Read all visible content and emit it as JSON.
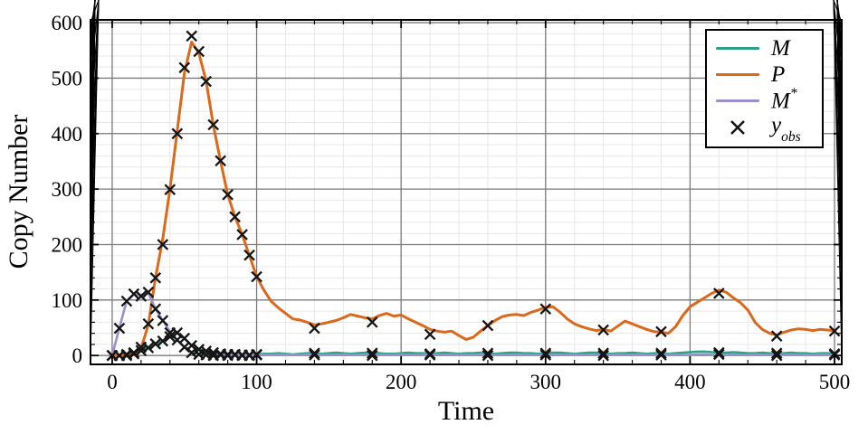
{
  "chart_data": {
    "type": "line",
    "title": "",
    "xlabel": "Time",
    "ylabel": "Copy Number",
    "xlim": [
      -15,
      505
    ],
    "ylim": [
      -16,
      605
    ],
    "xticks": [
      0,
      100,
      200,
      300,
      400,
      500
    ],
    "yticks": [
      0,
      100,
      200,
      300,
      400,
      500,
      600
    ],
    "minor_tick_step": 20,
    "grid": {
      "major_color": "#7a7a7a",
      "minor_color": "#e8e8e8",
      "background": "#ffffff"
    },
    "legend_position": "top-right",
    "series": [
      {
        "name": "M",
        "color": "#2da087",
        "t_start": 0,
        "t_step": 5,
        "values": [
          0,
          0,
          2,
          5,
          9,
          14,
          20,
          26,
          34,
          41,
          31,
          18,
          11,
          8,
          5,
          3,
          2,
          2,
          1,
          1,
          2,
          3,
          3,
          4,
          3,
          2,
          3,
          4,
          4,
          3,
          4,
          5,
          4,
          3,
          4,
          5,
          5,
          4,
          3,
          3,
          4,
          5,
          4,
          4,
          3,
          4,
          5,
          4,
          3,
          4,
          4,
          5,
          4,
          3,
          4,
          5,
          5,
          4,
          4,
          3,
          4,
          5,
          5,
          4,
          3,
          4,
          5,
          5,
          4,
          3,
          4,
          4,
          5,
          4,
          3,
          4,
          4,
          3,
          4,
          5,
          6,
          7,
          7,
          6,
          5,
          5,
          6,
          5,
          4,
          4,
          5,
          4,
          3,
          4,
          5,
          4,
          4,
          3,
          4,
          4,
          3
        ]
      },
      {
        "name": "P",
        "color": "#dc691a",
        "t_start": 0,
        "t_step": 5,
        "values": [
          0,
          0,
          1,
          3,
          13,
          55,
          140,
          210,
          300,
          405,
          510,
          565,
          545,
          495,
          415,
          350,
          290,
          250,
          218,
          180,
          142,
          118,
          98,
          86,
          76,
          66,
          64,
          60,
          55,
          57,
          60,
          63,
          68,
          74,
          71,
          68,
          66,
          72,
          76,
          71,
          73,
          66,
          60,
          54,
          47,
          44,
          42,
          44,
          36,
          29,
          33,
          44,
          54,
          63,
          70,
          73,
          74,
          72,
          78,
          82,
          87,
          88,
          78,
          66,
          57,
          52,
          48,
          45,
          47,
          44,
          53,
          62,
          57,
          52,
          47,
          43,
          42,
          40,
          52,
          72,
          88,
          96,
          104,
          112,
          118,
          114,
          104,
          95,
          82,
          60,
          47,
          40,
          37,
          42,
          46,
          48,
          47,
          45,
          47,
          46,
          45
        ]
      },
      {
        "name": "M*",
        "color": "#9691cd",
        "t_start": 0,
        "t_step": 5,
        "values": [
          0,
          50,
          98,
          110,
          109,
          113,
          84,
          63,
          43,
          28,
          15,
          6,
          3,
          2,
          1,
          1,
          1,
          1,
          1,
          1,
          1,
          1,
          1,
          2,
          1,
          1,
          1,
          2,
          1,
          1,
          1,
          1,
          2,
          1,
          1,
          2,
          1,
          1,
          1,
          1,
          2,
          1,
          1,
          1,
          2,
          1,
          1,
          2,
          1,
          1,
          1,
          2,
          1,
          1,
          1,
          1,
          2,
          1,
          1,
          1,
          1,
          2,
          1,
          1,
          2,
          1,
          1,
          1,
          1,
          1,
          2,
          1,
          1,
          2,
          1,
          1,
          1,
          2,
          1,
          1,
          1,
          2,
          2,
          1,
          1,
          1,
          2,
          1,
          1,
          2,
          1,
          1,
          1,
          1,
          2,
          1,
          1,
          1,
          2,
          1,
          1
        ]
      }
    ],
    "observations": {
      "name": "y_obs",
      "marker": "x",
      "color": "#151515",
      "times": [
        0,
        5,
        10,
        15,
        20,
        25,
        30,
        35,
        40,
        45,
        50,
        55,
        60,
        65,
        70,
        75,
        80,
        85,
        90,
        95,
        100,
        140,
        180,
        220,
        260,
        300,
        340,
        380,
        420,
        460,
        500
      ],
      "M": [
        0,
        0,
        2,
        5,
        9,
        14,
        21,
        26,
        34,
        41,
        31,
        18,
        11,
        8,
        5,
        3,
        2,
        2,
        1,
        1,
        2,
        4,
        4,
        3,
        4,
        4,
        4,
        4,
        5,
        4,
        3
      ],
      "P": [
        0,
        0,
        0,
        3,
        15,
        57,
        140,
        200,
        299,
        400,
        519,
        576,
        548,
        494,
        416,
        351,
        290,
        250,
        218,
        181,
        142,
        49,
        60,
        38,
        54,
        84,
        46,
        43,
        112,
        35,
        44
      ],
      "Mstar": [
        0,
        49,
        98,
        111,
        107,
        114,
        84,
        63,
        41,
        28,
        15,
        5,
        2,
        1,
        0,
        1,
        0,
        1,
        0,
        0,
        1,
        1,
        0,
        1,
        0,
        1,
        0,
        1,
        2,
        0,
        1
      ]
    },
    "legend": {
      "entries": [
        {
          "label": "M",
          "sup": "",
          "sub": ""
        },
        {
          "label": "P",
          "sup": "",
          "sub": ""
        },
        {
          "label": "M",
          "sup": "*",
          "sub": ""
        },
        {
          "label": "y",
          "sup": "",
          "sub": "obs"
        }
      ]
    }
  }
}
